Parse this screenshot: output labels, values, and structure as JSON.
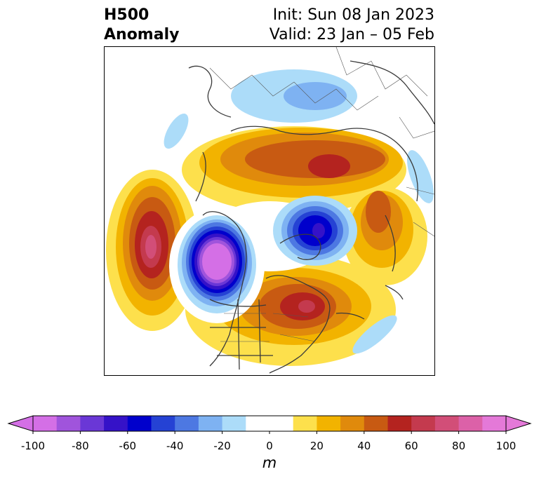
{
  "title": {
    "left_line1": "H500",
    "left_line2": "Anomaly",
    "right_line1": "Init: Sun 08 Jan 2023",
    "right_line2": "Valid: 23 Jan – 05 Feb"
  },
  "colorbar": {
    "unit": "m",
    "ticks": [
      "-100",
      "-80",
      "-60",
      "-40",
      "-20",
      "0",
      "20",
      "40",
      "60",
      "80",
      "100"
    ],
    "colors": [
      "#d46fe6",
      "#a054dc",
      "#6a37d6",
      "#3512c8",
      "#0000cc",
      "#2542d4",
      "#4d78e2",
      "#7eb2f2",
      "#acdcf9",
      "#ffffff",
      "#ffffff",
      "#fde04c",
      "#f2b300",
      "#e08a0c",
      "#c85a12",
      "#b4231f",
      "#c43a4e",
      "#d24e78",
      "#dc61a8",
      "#e479d8"
    ]
  },
  "map": {
    "projection": "north polar stereographic",
    "field": "500 hPa geopotential height anomaly"
  }
}
